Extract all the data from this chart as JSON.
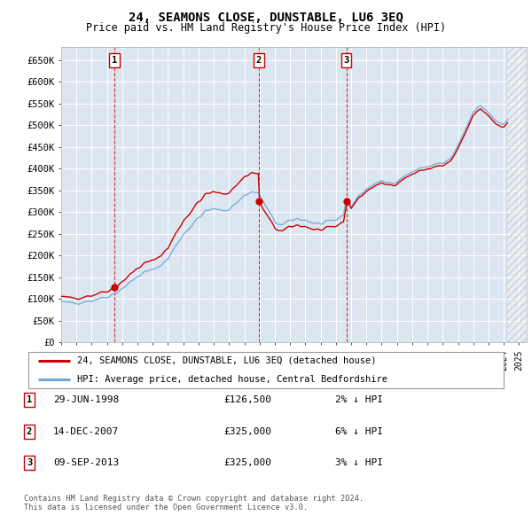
{
  "title": "24, SEAMONS CLOSE, DUNSTABLE, LU6 3EQ",
  "subtitle": "Price paid vs. HM Land Registry's House Price Index (HPI)",
  "ylabel_ticks": [
    "£0",
    "£50K",
    "£100K",
    "£150K",
    "£200K",
    "£250K",
    "£300K",
    "£350K",
    "£400K",
    "£450K",
    "£500K",
    "£550K",
    "£600K",
    "£650K"
  ],
  "ytick_vals": [
    0,
    50000,
    100000,
    150000,
    200000,
    250000,
    300000,
    350000,
    400000,
    450000,
    500000,
    550000,
    600000,
    650000
  ],
  "ylim": [
    0,
    680000
  ],
  "xlim_start": 1995.0,
  "xlim_end": 2025.5,
  "background_color": "#dce6f1",
  "grid_color": "#ffffff",
  "hatch_color": "#bbbbbb",
  "sale_dates": [
    1998.496,
    2007.954,
    2013.689
  ],
  "sale_prices": [
    126500,
    325000,
    325000
  ],
  "sale_labels": [
    "1",
    "2",
    "3"
  ],
  "hpi_color": "#6fa8dc",
  "price_color": "#cc0000",
  "legend_label_price": "24, SEAMONS CLOSE, DUNSTABLE, LU6 3EQ (detached house)",
  "legend_label_hpi": "HPI: Average price, detached house, Central Bedfordshire",
  "table_rows": [
    {
      "num": "1",
      "date": "29-JUN-1998",
      "price": "£126,500",
      "hpi": "2% ↓ HPI"
    },
    {
      "num": "2",
      "date": "14-DEC-2007",
      "price": "£325,000",
      "hpi": "6% ↓ HPI"
    },
    {
      "num": "3",
      "date": "09-SEP-2013",
      "price": "£325,000",
      "hpi": "3% ↓ HPI"
    }
  ],
  "footnote": "Contains HM Land Registry data © Crown copyright and database right 2024.\nThis data is licensed under the Open Government Licence v3.0.",
  "hatch_start": 2024.25,
  "data_end": 2024.25
}
